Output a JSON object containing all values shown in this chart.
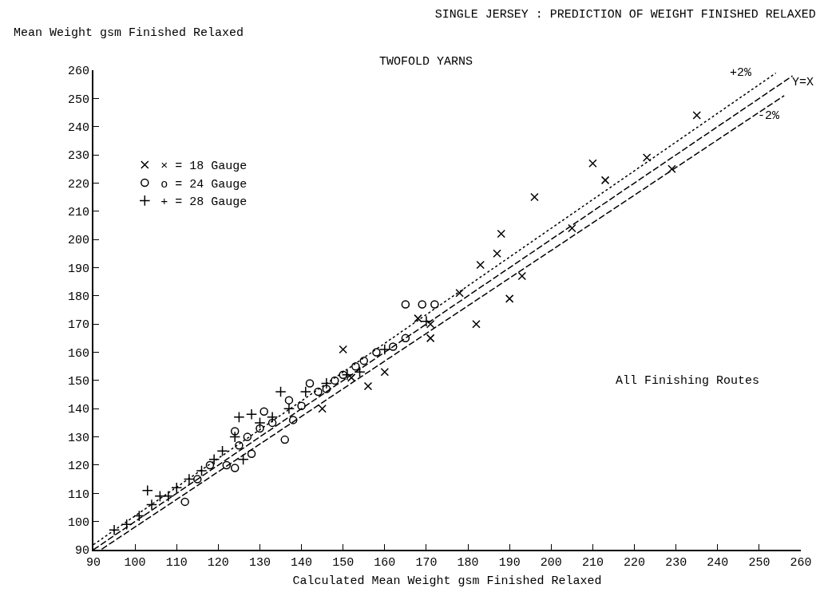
{
  "chart_data": {
    "type": "scatter",
    "title": "SINGLE JERSEY : PREDICTION OF WEIGHT FINISHED RELAXED",
    "xlabel": "Calculated Mean Weight gsm Finished Relaxed",
    "ylabel": "Mean Weight gsm Finished Relaxed",
    "xlim": [
      90,
      260
    ],
    "xticks": [
      90,
      100,
      110,
      120,
      130,
      140,
      150,
      160,
      170,
      180,
      190,
      200,
      210,
      220,
      230,
      240,
      250,
      260
    ],
    "ylim": [
      90,
      260
    ],
    "yticks": [
      90,
      100,
      110,
      120,
      130,
      140,
      150,
      160,
      170,
      180,
      190,
      200,
      210,
      220,
      230,
      240,
      250,
      260
    ],
    "grid": false,
    "legend": "top left",
    "series": [
      {
        "name": "× = 18 Gauge",
        "marker": "x",
        "color": "#000000",
        "x": [
          235,
          223,
          229,
          210,
          213,
          196,
          205,
          188,
          187,
          193,
          190,
          183,
          178,
          182,
          171,
          168,
          160,
          156,
          150,
          145,
          152,
          171
        ],
        "values": [
          244,
          229,
          225,
          227,
          221,
          215,
          204,
          202,
          195,
          187,
          179,
          191,
          181,
          170,
          165,
          172,
          153,
          148,
          161,
          140,
          151,
          170
        ]
      },
      {
        "name": "o = 24 Gauge",
        "marker": "circle",
        "color": "#000000",
        "x": [
          165,
          169,
          172,
          162,
          165,
          112,
          136,
          124,
          122,
          124,
          128,
          131,
          137,
          138,
          142,
          146,
          150,
          153,
          155,
          140,
          133,
          127,
          118,
          115,
          125,
          130,
          144,
          148,
          158
        ],
        "values": [
          177,
          177,
          177,
          162,
          165,
          107,
          129,
          132,
          120,
          119,
          124,
          139,
          143,
          136,
          149,
          147,
          152,
          155,
          157,
          141,
          135,
          130,
          120,
          115,
          127,
          133,
          146,
          150,
          160
        ]
      },
      {
        "name": "+ = 28 Gauge",
        "marker": "cross",
        "color": "#000000",
        "x": [
          103,
          106,
          101,
          126,
          128,
          135,
          125,
          95,
          98,
          104,
          108,
          110,
          113,
          116,
          119,
          121,
          124,
          130,
          133,
          137,
          141,
          146,
          151,
          154,
          160,
          170
        ],
        "values": [
          111,
          109,
          102,
          122,
          138,
          146,
          137,
          97,
          99,
          106,
          109,
          112,
          115,
          118,
          122,
          125,
          130,
          135,
          137,
          140,
          146,
          149,
          152,
          153,
          161,
          171
        ]
      },
      {
        "type": "line",
        "line_style": "dotted",
        "color": "#000000",
        "x": [
          90,
          254
        ],
        "values": [
          91.8,
          259
        ]
      },
      {
        "type": "line",
        "line_style": "dashed",
        "color": "#000000",
        "x": [
          90,
          258
        ],
        "values": [
          90,
          258
        ]
      },
      {
        "type": "line",
        "line_style": "dashed",
        "color": "#000000",
        "x": [
          92,
          256
        ],
        "values": [
          90.2,
          251
        ]
      }
    ],
    "annotations": [
      "TWOFOLD YARNS",
      "All Finishing Routes",
      "+2%",
      "Y=X",
      "-2%"
    ]
  }
}
